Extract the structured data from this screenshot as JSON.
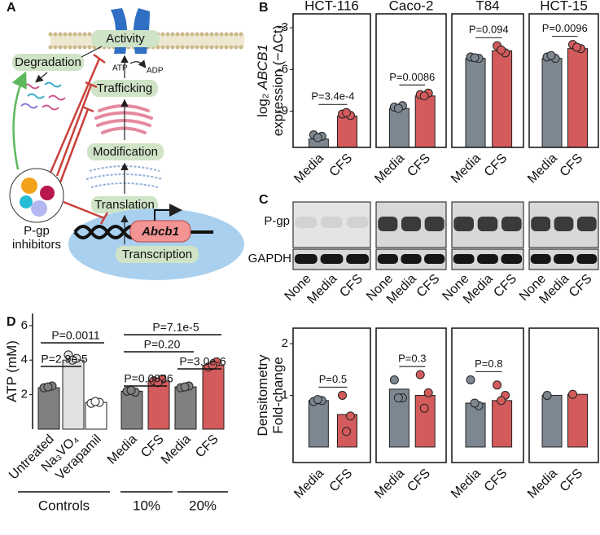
{
  "panel_labels": [
    "A",
    "B",
    "C",
    "D"
  ],
  "diagram": {
    "activity": "Activity",
    "degradation": "Degradation",
    "atp": "ATP",
    "adp": "ADP",
    "trafficking": "Trafficking",
    "modification": "Modification",
    "translation": "Translation",
    "gene": "Abcb1",
    "transcription": "Transcription",
    "inhibitors": [
      "P-gp",
      "inhibitors"
    ]
  },
  "blot": {
    "rows": [
      "P-gp",
      "GAPDH"
    ],
    "lanes": [
      "None",
      "Media",
      "CFS"
    ]
  },
  "chart_data": [
    {
      "type": "bar",
      "title": "HCT-116",
      "frame": true,
      "categories": [
        "Media",
        "CFS"
      ],
      "values": [
        -11,
        -9.35
      ],
      "colors": [
        "#7d8791",
        "#d35b5b"
      ],
      "points": [
        [
          -10.7,
          -10.8,
          -10.9
        ],
        [
          -9.2,
          -9.3,
          -9.1
        ]
      ],
      "ylim": [
        -11.6,
        -2
      ],
      "yticks": [
        -3,
        -6,
        -9
      ],
      "ylabel": [
        [
          "log₂ ",
          "ABCB1"
        ],
        [
          "expression (−ΔCt)"
        ]
      ],
      "p_label": "P=3.4e-4"
    },
    {
      "type": "bar",
      "title": "Caco-2",
      "frame": true,
      "categories": [
        "Media",
        "CFS"
      ],
      "values": [
        -8.8,
        -7.9
      ],
      "colors": [
        "#7d8791",
        "#d35b5b"
      ],
      "points": [
        [
          -8.7,
          -8.6,
          -8.8
        ],
        [
          -7.8,
          -7.7,
          -7.9
        ]
      ],
      "ylim": [
        -11.6,
        -2
      ],
      "p_label": "P=0.0086"
    },
    {
      "type": "bar",
      "title": "T84",
      "frame": true,
      "categories": [
        "Media",
        "CFS"
      ],
      "values": [
        -5.2,
        -4.65
      ],
      "colors": [
        "#7d8791",
        "#d35b5b"
      ],
      "points": [
        [
          -5.1,
          -5.2,
          -5.15
        ],
        [
          -4.3,
          -4.8,
          -4.6
        ]
      ],
      "ylim": [
        -11.6,
        -2
      ],
      "p_label": "P=0.094"
    },
    {
      "type": "bar",
      "title": "HCT-15",
      "frame": true,
      "categories": [
        "Media",
        "CFS"
      ],
      "values": [
        -5.2,
        -4.5
      ],
      "colors": [
        "#7d8791",
        "#d35b5b"
      ],
      "points": [
        [
          -5.1,
          -5.2,
          -5.0
        ],
        [
          -4.2,
          -4.5,
          -4.4
        ]
      ],
      "ylim": [
        -11.6,
        -2
      ],
      "p_label": "P=0.0096"
    },
    {
      "type": "bar",
      "frame": true,
      "categories": [
        "Media",
        "CFS"
      ],
      "values": [
        0.9,
        0.63
      ],
      "colors": [
        "#7d8791",
        "#d35b5b"
      ],
      "points": [
        [
          0.88,
          0.9,
          0.92
        ],
        [
          1.0,
          0.6,
          0.3
        ]
      ],
      "ylim": [
        -0.3,
        2.3
      ],
      "yticks": [
        1,
        2
      ],
      "ylabel": [
        [
          "Densitometry"
        ],
        [
          "Fold-change"
        ]
      ],
      "p_label": "P=0.5"
    },
    {
      "type": "bar",
      "frame": true,
      "categories": [
        "Media",
        "CFS"
      ],
      "values": [
        1.12,
        1.0
      ],
      "colors": [
        "#7d8791",
        "#d35b5b"
      ],
      "points": [
        [
          1.3,
          0.95,
          0.95
        ],
        [
          1.4,
          1.05,
          0.75
        ]
      ],
      "ylim": [
        -0.3,
        2.3
      ],
      "p_label": "P=0.3"
    },
    {
      "type": "bar",
      "frame": true,
      "categories": [
        "Media",
        "CFS"
      ],
      "values": [
        0.85,
        0.9
      ],
      "colors": [
        "#7d8791",
        "#d35b5b"
      ],
      "points": [
        [
          1.3,
          0.8,
          0.85
        ],
        [
          1.2,
          1.0,
          0.9
        ]
      ],
      "ylim": [
        -0.3,
        2.3
      ],
      "p_label": "P=0.8"
    },
    {
      "type": "bar",
      "frame": true,
      "categories": [
        "Media",
        "CFS"
      ],
      "values": [
        1.0,
        1.02
      ],
      "colors": [
        "#7d8791",
        "#d35b5b"
      ],
      "points": [
        [
          1.0
        ],
        [
          1.02
        ]
      ],
      "ylim": [
        -0.3,
        2.3
      ]
    },
    {
      "type": "bar",
      "frame": false,
      "categories": [
        "Untreated",
        "Na₃VO₄",
        "Verapamil",
        "Media",
        "CFS",
        "Media",
        "CFS"
      ],
      "values": [
        2.4,
        4.0,
        1.55,
        2.2,
        2.8,
        2.45,
        3.7
      ],
      "colors": [
        "#808080",
        "#e2e2e2",
        "#ffffff",
        "#808080",
        "#d35b5b",
        "#808080",
        "#d35b5b"
      ],
      "points": [
        [
          2.4,
          2.5,
          2.45
        ],
        [
          4.3,
          4.1,
          4.0
        ],
        [
          1.5,
          1.55,
          1.6
        ],
        [
          2.2,
          2.15,
          2.25
        ],
        [
          2.8,
          2.9,
          2.7
        ],
        [
          2.4,
          2.5,
          2.45
        ],
        [
          3.6,
          3.9,
          3.7
        ]
      ],
      "ylim": [
        0,
        6.7
      ],
      "yticks": [
        2,
        4,
        6
      ],
      "ylabel": [
        [
          "ATP (mM)"
        ]
      ],
      "p_labels": [
        "P=0.0011",
        "P=2.9e-5",
        "P=0.20",
        "P=7.1e-5",
        "P=0.0026",
        "P=3.0e-6"
      ],
      "groups": [
        "Controls",
        "10%",
        "20%"
      ]
    }
  ]
}
